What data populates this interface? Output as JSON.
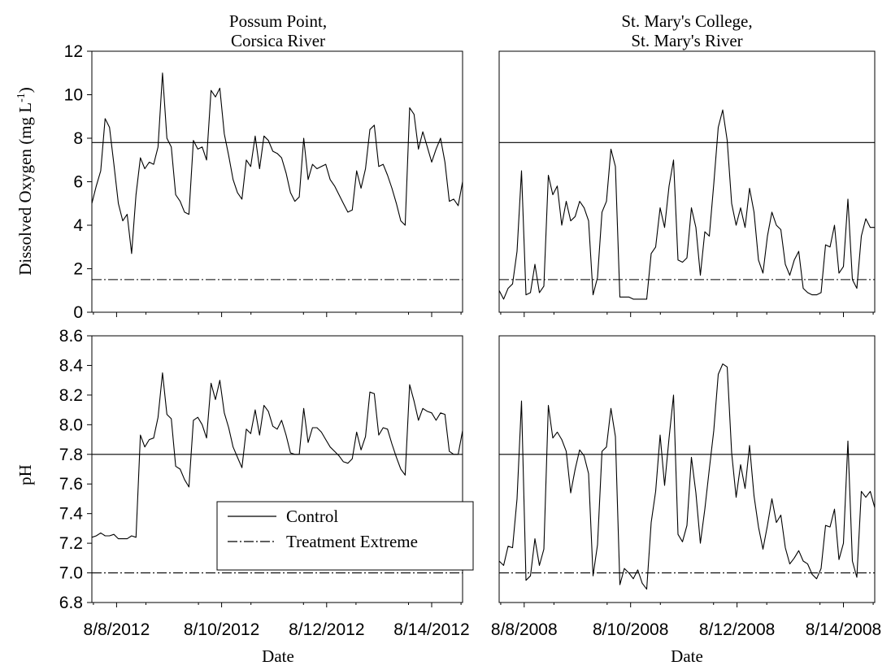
{
  "columns": [
    {
      "title_line1": "Possum Point,",
      "title_line2": "Corsica River",
      "xlabel": "Date",
      "ticks": [
        "8/8/2012",
        "8/10/2012",
        "8/12/2012",
        "8/14/2012"
      ]
    },
    {
      "title_line1": "St. Mary's College,",
      "title_line2": "St. Mary's River",
      "xlabel": "Date",
      "ticks": [
        "8/8/2008",
        "8/10/2008",
        "8/12/2008",
        "8/14/2008"
      ]
    }
  ],
  "rows": [
    {
      "ylabel": "Dissolved Oxygen (mg L",
      "ylabel_sup": "-1",
      "ylabel_end": ")",
      "ytick_labels": [
        "0",
        "2",
        "4",
        "6",
        "8",
        "10",
        "12"
      ]
    },
    {
      "ylabel": "pH",
      "ylabel_sup": "",
      "ylabel_end": "",
      "ytick_labels": [
        "6.8",
        "7.0",
        "7.2",
        "7.4",
        "7.6",
        "7.8",
        "8.0",
        "8.2",
        "8.4",
        "8.6"
      ]
    }
  ],
  "legend": {
    "control_label": "Control",
    "treatment_label": "Treatment Extreme"
  },
  "colors": {
    "series": "#000000",
    "axes": "#000000",
    "background": "#ffffff"
  },
  "chart_data": [
    {
      "type": "line",
      "title": "Possum Point, Corsica River",
      "xlabel": "Date",
      "ylabel": "Dissolved Oxygen (mg L-1)",
      "xlim": [
        0,
        60
      ],
      "ylim": [
        0,
        12
      ],
      "x_ticks": [
        {
          "value": 4,
          "label": "8/8/2012"
        },
        {
          "value": 21,
          "label": "8/10/2012"
        },
        {
          "value": 38,
          "label": "8/12/2012"
        },
        {
          "value": 55,
          "label": "8/14/2012"
        }
      ],
      "y_ticks": [
        0,
        2,
        4,
        6,
        8,
        10,
        12
      ],
      "reference_lines": [
        {
          "name": "Control",
          "value": 7.8,
          "style": "solid"
        },
        {
          "name": "Treatment Extreme",
          "value": 1.5,
          "style": "dash-dot"
        }
      ],
      "series": [
        {
          "values": [
            5.0,
            5.8,
            6.5,
            8.9,
            8.5,
            6.8,
            5.0,
            4.2,
            4.5,
            2.7,
            5.4,
            7.1,
            6.6,
            6.9,
            6.8,
            7.6,
            11.0,
            8.0,
            7.6,
            5.4,
            5.1,
            4.6,
            4.5,
            7.9,
            7.5,
            7.6,
            7.0,
            10.2,
            9.9,
            10.3,
            8.2,
            7.2,
            6.1,
            5.5,
            5.2,
            7.0,
            6.7,
            8.1,
            6.6,
            8.1,
            7.9,
            7.4,
            7.3,
            7.1,
            6.4,
            5.5,
            5.1,
            5.3,
            8.0,
            6.1,
            6.8,
            6.6,
            6.7,
            6.8,
            6.1,
            5.8,
            5.4,
            5.0,
            4.6,
            4.7,
            6.5,
            5.7,
            6.6,
            8.4,
            8.6,
            6.7,
            6.8,
            6.3,
            5.7,
            5.0,
            4.2,
            4.0,
            9.4,
            9.1,
            7.5,
            8.3,
            7.6,
            6.9,
            7.5,
            8.0,
            6.9,
            5.1,
            5.2,
            4.9,
            6.0
          ]
        }
      ]
    },
    {
      "type": "line",
      "title": "St. Mary's College, St. Mary's River",
      "xlabel": "Date",
      "ylabel": "Dissolved Oxygen (mg L-1)",
      "xlim": [
        0,
        60
      ],
      "ylim": [
        0,
        12
      ],
      "x_ticks": [
        {
          "value": 4,
          "label": "8/8/2008"
        },
        {
          "value": 21,
          "label": "8/10/2008"
        },
        {
          "value": 38,
          "label": "8/12/2008"
        },
        {
          "value": 55,
          "label": "8/14/2008"
        }
      ],
      "y_ticks": [
        0,
        2,
        4,
        6,
        8,
        10,
        12
      ],
      "reference_lines": [
        {
          "name": "Control",
          "value": 7.8,
          "style": "solid"
        },
        {
          "name": "Treatment Extreme",
          "value": 1.5,
          "style": "dash-dot"
        }
      ],
      "series": [
        {
          "values": [
            1.0,
            0.6,
            1.1,
            1.3,
            2.8,
            6.5,
            0.8,
            0.9,
            2.2,
            0.9,
            1.2,
            6.3,
            5.4,
            5.8,
            4.0,
            5.1,
            4.2,
            4.4,
            5.1,
            4.8,
            4.2,
            0.8,
            1.6,
            4.6,
            5.1,
            7.5,
            6.7,
            0.7,
            0.7,
            0.7,
            0.6,
            0.6,
            0.6,
            0.6,
            2.7,
            3.0,
            4.8,
            3.9,
            5.8,
            7.0,
            2.4,
            2.3,
            2.5,
            4.8,
            3.9,
            1.7,
            3.7,
            3.5,
            5.9,
            8.5,
            9.3,
            7.9,
            5.0,
            4.0,
            4.8,
            3.9,
            5.7,
            4.6,
            2.4,
            1.8,
            3.5,
            4.6,
            4.0,
            3.8,
            2.2,
            1.7,
            2.4,
            2.8,
            1.1,
            0.9,
            0.8,
            0.8,
            0.9,
            3.1,
            3.0,
            4.0,
            1.8,
            2.1,
            5.2,
            1.5,
            1.1,
            3.5,
            4.3,
            3.9,
            3.9
          ]
        }
      ]
    },
    {
      "type": "line",
      "title": "Possum Point, Corsica River",
      "xlabel": "Date",
      "ylabel": "pH",
      "xlim": [
        0,
        60
      ],
      "ylim": [
        6.8,
        8.6
      ],
      "x_ticks": [
        {
          "value": 4,
          "label": "8/8/2012"
        },
        {
          "value": 21,
          "label": "8/10/2012"
        },
        {
          "value": 38,
          "label": "8/12/2012"
        },
        {
          "value": 55,
          "label": "8/14/2012"
        }
      ],
      "y_ticks": [
        6.8,
        7.0,
        7.2,
        7.4,
        7.6,
        7.8,
        8.0,
        8.2,
        8.4,
        8.6
      ],
      "reference_lines": [
        {
          "name": "Control",
          "value": 7.8,
          "style": "solid"
        },
        {
          "name": "Treatment Extreme",
          "value": 7.0,
          "style": "dash-dot"
        }
      ],
      "series": [
        {
          "values": [
            7.24,
            7.25,
            7.27,
            7.25,
            7.25,
            7.26,
            7.23,
            7.23,
            7.23,
            7.25,
            7.24,
            7.93,
            7.85,
            7.9,
            7.91,
            8.05,
            8.35,
            8.07,
            8.04,
            7.72,
            7.7,
            7.63,
            7.58,
            8.03,
            8.05,
            8.0,
            7.91,
            8.28,
            8.17,
            8.3,
            8.08,
            7.98,
            7.85,
            7.78,
            7.71,
            7.97,
            7.94,
            8.1,
            7.93,
            8.13,
            8.09,
            7.99,
            7.97,
            8.03,
            7.93,
            7.81,
            7.8,
            7.8,
            8.11,
            7.88,
            7.98,
            7.98,
            7.95,
            7.9,
            7.85,
            7.82,
            7.79,
            7.75,
            7.74,
            7.77,
            7.95,
            7.83,
            7.92,
            8.22,
            8.21,
            7.93,
            7.98,
            7.97,
            7.87,
            7.78,
            7.7,
            7.66,
            8.27,
            8.16,
            8.03,
            8.11,
            8.09,
            8.08,
            8.03,
            8.08,
            8.07,
            7.82,
            7.8,
            7.8,
            7.96
          ]
        }
      ]
    },
    {
      "type": "line",
      "title": "St. Mary's College, St. Mary's River",
      "xlabel": "Date",
      "ylabel": "pH",
      "xlim": [
        0,
        60
      ],
      "ylim": [
        6.8,
        8.6
      ],
      "x_ticks": [
        {
          "value": 4,
          "label": "8/8/2008"
        },
        {
          "value": 21,
          "label": "8/10/2008"
        },
        {
          "value": 38,
          "label": "8/12/2008"
        },
        {
          "value": 55,
          "label": "8/14/2008"
        }
      ],
      "y_ticks": [
        6.8,
        7.0,
        7.2,
        7.4,
        7.6,
        7.8,
        8.0,
        8.2,
        8.4,
        8.6
      ],
      "reference_lines": [
        {
          "name": "Control",
          "value": 7.8,
          "style": "solid"
        },
        {
          "name": "Treatment Extreme",
          "value": 7.0,
          "style": "dash-dot"
        }
      ],
      "series": [
        {
          "values": [
            7.08,
            7.05,
            7.18,
            7.17,
            7.5,
            8.16,
            6.95,
            6.98,
            7.23,
            7.05,
            7.16,
            8.13,
            7.91,
            7.95,
            7.9,
            7.82,
            7.54,
            7.7,
            7.83,
            7.79,
            7.67,
            6.98,
            7.19,
            7.82,
            7.85,
            8.11,
            7.92,
            6.92,
            7.03,
            7.0,
            6.96,
            7.02,
            6.93,
            6.89,
            7.34,
            7.55,
            7.93,
            7.59,
            7.91,
            8.2,
            7.26,
            7.21,
            7.32,
            7.78,
            7.54,
            7.2,
            7.43,
            7.7,
            7.96,
            8.34,
            8.41,
            8.39,
            7.81,
            7.51,
            7.73,
            7.57,
            7.86,
            7.52,
            7.31,
            7.16,
            7.32,
            7.5,
            7.34,
            7.39,
            7.17,
            7.06,
            7.1,
            7.15,
            7.08,
            7.06,
            6.99,
            6.96,
            7.03,
            7.32,
            7.31,
            7.43,
            7.09,
            7.2,
            7.89,
            7.08,
            6.97,
            7.55,
            7.51,
            7.55,
            7.44
          ]
        }
      ]
    }
  ]
}
